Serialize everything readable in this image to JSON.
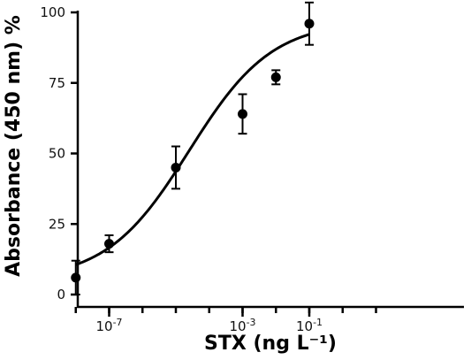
{
  "chart_data": {
    "type": "scatter",
    "title": "",
    "xlabel": "STX (ng L⁻¹)",
    "ylabel": "Absorbance (450 nm) %",
    "x_scale": "log",
    "xlim": [
      1e-09,
      10
    ],
    "ylim": [
      0,
      100
    ],
    "x_ticks": [
      {
        "value": 1e-07,
        "base": "10",
        "exp": "-7"
      },
      {
        "value": 0.001,
        "base": "10",
        "exp": "-3"
      },
      {
        "value": 0.1,
        "base": "10",
        "exp": "-1"
      }
    ],
    "y_ticks": [
      0,
      25,
      50,
      75,
      100
    ],
    "grid": false,
    "series": [
      {
        "points": [
          {
            "x": 1e-08,
            "y": 6,
            "err": 6
          },
          {
            "x": 1e-07,
            "y": 18,
            "err": 3
          },
          {
            "x": 1e-05,
            "y": 45,
            "err": 7.5
          },
          {
            "x": 0.001,
            "y": 64,
            "err": 7
          },
          {
            "x": 0.01,
            "y": 77,
            "err": 2.5
          },
          {
            "x": 0.1,
            "y": 96,
            "err": 7.5
          }
        ]
      }
    ],
    "fit_curve": {
      "model": "sigmoidal",
      "bottom": 5,
      "top": 97,
      "log_ec50": -4.6,
      "hill_slope": 0.35,
      "x_range": [
        1e-08,
        0.1
      ]
    }
  }
}
